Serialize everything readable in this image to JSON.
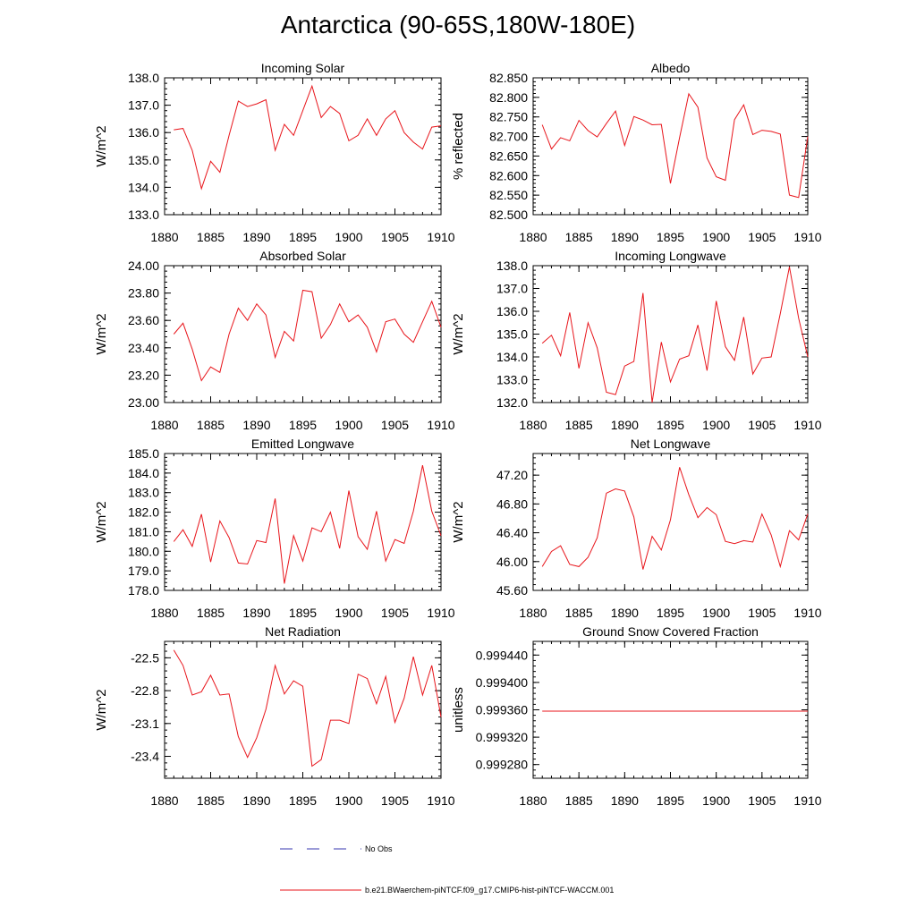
{
  "title": "Antarctica (90-65S,180W-180E)",
  "legend": {
    "obs_label": "No Obs",
    "model_label": "b.e21.BWaerchem-piNTCF.f09_g17.CMIP6-hist-piNTCF-WACCM.001",
    "obs_color": "#3a3ab0",
    "model_color": "#e8151b"
  },
  "chart_data": [
    {
      "type": "line",
      "title": "Incoming Solar",
      "ylabel": "W/m^2",
      "xlim": [
        1880,
        1910
      ],
      "ylim": [
        133.0,
        138.0
      ],
      "xticks": [
        1880,
        1885,
        1890,
        1895,
        1900,
        1905,
        1910
      ],
      "yticks": [
        "133.0",
        "134.0",
        "135.0",
        "136.0",
        "137.0",
        "138.0"
      ],
      "x": [
        1881,
        1882,
        1883,
        1884,
        1885,
        1886,
        1887,
        1888,
        1889,
        1890,
        1891,
        1892,
        1893,
        1894,
        1895,
        1896,
        1897,
        1898,
        1899,
        1900,
        1901,
        1902,
        1903,
        1904,
        1905,
        1906,
        1907,
        1908,
        1909,
        1910
      ],
      "y": [
        136.1,
        136.15,
        135.35,
        133.95,
        134.95,
        134.55,
        135.9,
        137.15,
        136.95,
        137.05,
        137.2,
        135.35,
        136.3,
        135.9,
        136.8,
        137.7,
        136.55,
        136.95,
        136.7,
        135.7,
        135.9,
        136.5,
        135.9,
        136.5,
        136.8,
        136.0,
        135.65,
        135.4,
        136.2,
        136.25
      ]
    },
    {
      "type": "line",
      "title": "Albedo",
      "ylabel": "% reflected",
      "xlim": [
        1880,
        1910
      ],
      "ylim": [
        82.5,
        82.85
      ],
      "xticks": [
        1880,
        1885,
        1890,
        1895,
        1900,
        1905,
        1910
      ],
      "yticks": [
        "82.500",
        "82.550",
        "82.600",
        "82.650",
        "82.700",
        "82.750",
        "82.800",
        "82.850"
      ],
      "x": [
        1881,
        1882,
        1883,
        1884,
        1885,
        1886,
        1887,
        1888,
        1889,
        1890,
        1891,
        1892,
        1893,
        1894,
        1895,
        1896,
        1897,
        1898,
        1899,
        1900,
        1901,
        1902,
        1903,
        1904,
        1905,
        1906,
        1907,
        1908,
        1909,
        1910
      ],
      "y": [
        82.73,
        82.668,
        82.697,
        82.689,
        82.741,
        82.715,
        82.699,
        82.733,
        82.765,
        82.677,
        82.751,
        82.742,
        82.73,
        82.731,
        82.58,
        82.697,
        82.809,
        82.775,
        82.645,
        82.597,
        82.588,
        82.743,
        82.781,
        82.705,
        82.716,
        82.713,
        82.706,
        82.55,
        82.544,
        82.7
      ]
    },
    {
      "type": "line",
      "title": "Absorbed Solar",
      "ylabel": "W/m^2",
      "xlim": [
        1880,
        1910
      ],
      "ylim": [
        23.0,
        24.0
      ],
      "xticks": [
        1880,
        1885,
        1890,
        1895,
        1900,
        1905,
        1910
      ],
      "yticks": [
        "23.00",
        "23.20",
        "23.40",
        "23.60",
        "23.80",
        "24.00"
      ],
      "x": [
        1881,
        1882,
        1883,
        1884,
        1885,
        1886,
        1887,
        1888,
        1889,
        1890,
        1891,
        1892,
        1893,
        1894,
        1895,
        1896,
        1897,
        1898,
        1899,
        1900,
        1901,
        1902,
        1903,
        1904,
        1905,
        1906,
        1907,
        1908,
        1909,
        1910
      ],
      "y": [
        23.5,
        23.58,
        23.39,
        23.16,
        23.26,
        23.22,
        23.5,
        23.69,
        23.6,
        23.72,
        23.64,
        23.33,
        23.52,
        23.45,
        23.82,
        23.81,
        23.47,
        23.57,
        23.72,
        23.59,
        23.64,
        23.55,
        23.37,
        23.59,
        23.61,
        23.5,
        23.44,
        23.59,
        23.74,
        23.55
      ]
    },
    {
      "type": "line",
      "title": "Incoming Longwave",
      "ylabel": "W/m^2",
      "xlim": [
        1880,
        1910
      ],
      "ylim": [
        132.0,
        138.0
      ],
      "xticks": [
        1880,
        1885,
        1890,
        1895,
        1900,
        1905,
        1910
      ],
      "yticks": [
        "132.0",
        "133.0",
        "134.0",
        "135.0",
        "136.0",
        "137.0",
        "138.0"
      ],
      "x": [
        1881,
        1882,
        1883,
        1884,
        1885,
        1886,
        1887,
        1888,
        1889,
        1890,
        1891,
        1892,
        1893,
        1894,
        1895,
        1896,
        1897,
        1898,
        1899,
        1900,
        1901,
        1902,
        1903,
        1904,
        1905,
        1906,
        1907,
        1908,
        1909,
        1910
      ],
      "y": [
        134.6,
        134.95,
        134.05,
        135.95,
        133.5,
        135.5,
        134.4,
        132.45,
        132.35,
        133.6,
        133.8,
        136.8,
        132.0,
        134.65,
        132.9,
        133.9,
        134.05,
        135.4,
        133.4,
        136.45,
        134.45,
        133.85,
        135.75,
        133.25,
        133.95,
        134.0,
        135.9,
        137.95,
        135.7,
        134.0
      ]
    },
    {
      "type": "line",
      "title": "Emitted Longwave",
      "ylabel": "W/m^2",
      "xlim": [
        1880,
        1910
      ],
      "ylim": [
        178.0,
        185.0
      ],
      "xticks": [
        1880,
        1885,
        1890,
        1895,
        1900,
        1905,
        1910
      ],
      "yticks": [
        "178.0",
        "179.0",
        "180.0",
        "181.0",
        "182.0",
        "183.0",
        "184.0",
        "185.0"
      ],
      "x": [
        1881,
        1882,
        1883,
        1884,
        1885,
        1886,
        1887,
        1888,
        1889,
        1890,
        1891,
        1892,
        1893,
        1894,
        1895,
        1896,
        1897,
        1898,
        1899,
        1900,
        1901,
        1902,
        1903,
        1904,
        1905,
        1906,
        1907,
        1908,
        1909,
        1910
      ],
      "y": [
        180.5,
        181.1,
        180.25,
        181.9,
        179.45,
        181.55,
        180.7,
        179.4,
        179.35,
        180.55,
        180.45,
        182.7,
        178.35,
        180.8,
        179.5,
        181.2,
        181.0,
        182.0,
        180.15,
        183.1,
        180.75,
        180.1,
        182.05,
        179.5,
        180.6,
        180.4,
        182.05,
        184.4,
        182.05,
        180.8
      ]
    },
    {
      "type": "line",
      "title": "Net Longwave",
      "ylabel": "W/m^2",
      "xlim": [
        1880,
        1910
      ],
      "ylim": [
        45.6,
        47.5
      ],
      "xticks": [
        1880,
        1885,
        1890,
        1895,
        1900,
        1905,
        1910
      ],
      "yticks": [
        "45.60",
        "46.00",
        "46.40",
        "46.80",
        "47.20"
      ],
      "x": [
        1881,
        1882,
        1883,
        1884,
        1885,
        1886,
        1887,
        1888,
        1889,
        1890,
        1891,
        1892,
        1893,
        1894,
        1895,
        1896,
        1897,
        1898,
        1899,
        1900,
        1901,
        1902,
        1903,
        1904,
        1905,
        1906,
        1907,
        1908,
        1909,
        1910
      ],
      "y": [
        45.93,
        46.14,
        46.22,
        45.96,
        45.93,
        46.06,
        46.33,
        46.95,
        47.01,
        46.98,
        46.62,
        45.89,
        46.35,
        46.16,
        46.58,
        47.31,
        46.93,
        46.61,
        46.75,
        46.65,
        46.28,
        46.25,
        46.29,
        46.27,
        46.66,
        46.37,
        45.93,
        46.43,
        46.3,
        46.66
      ]
    },
    {
      "type": "line",
      "title": "Net Radiation",
      "ylabel": "W/m^2",
      "xlim": [
        1880,
        1910
      ],
      "ylim": [
        -23.6,
        -22.35
      ],
      "xticks": [
        1880,
        1885,
        1890,
        1895,
        1900,
        1905,
        1910
      ],
      "yticks": [
        "-23.4",
        "-23.1",
        "-22.8",
        "-22.5"
      ],
      "x": [
        1881,
        1882,
        1883,
        1884,
        1885,
        1886,
        1887,
        1888,
        1889,
        1890,
        1891,
        1892,
        1893,
        1894,
        1895,
        1896,
        1897,
        1898,
        1899,
        1900,
        1901,
        1902,
        1903,
        1904,
        1905,
        1906,
        1907,
        1908,
        1909,
        1910
      ],
      "y": [
        -22.43,
        -22.57,
        -22.84,
        -22.81,
        -22.66,
        -22.84,
        -22.83,
        -23.22,
        -23.41,
        -23.23,
        -22.97,
        -22.57,
        -22.83,
        -22.71,
        -22.76,
        -23.49,
        -23.43,
        -23.07,
        -23.07,
        -23.1,
        -22.65,
        -22.69,
        -22.92,
        -22.67,
        -23.09,
        -22.87,
        -22.49,
        -22.84,
        -22.57,
        -23.04
      ]
    },
    {
      "type": "line",
      "title": "Ground Snow Covered Fraction",
      "ylabel": "unitless",
      "xlim": [
        1880,
        1910
      ],
      "ylim": [
        0.99926,
        0.99946
      ],
      "xticks": [
        1880,
        1885,
        1890,
        1895,
        1900,
        1905,
        1910
      ],
      "yticks": [
        "0.999280",
        "0.999320",
        "0.999360",
        "0.999400",
        "0.999440"
      ],
      "x": [
        1881,
        1882,
        1883,
        1884,
        1885,
        1886,
        1887,
        1888,
        1889,
        1890,
        1891,
        1892,
        1893,
        1894,
        1895,
        1896,
        1897,
        1898,
        1899,
        1900,
        1901,
        1902,
        1903,
        1904,
        1905,
        1906,
        1907,
        1908,
        1909,
        1910
      ],
      "y": [
        0.999358,
        0.999358,
        0.999358,
        0.999358,
        0.999358,
        0.999358,
        0.999358,
        0.999358,
        0.999358,
        0.999358,
        0.999358,
        0.999358,
        0.999358,
        0.999358,
        0.999358,
        0.999358,
        0.999358,
        0.999358,
        0.999358,
        0.999358,
        0.999358,
        0.999358,
        0.999358,
        0.999358,
        0.999358,
        0.999358,
        0.999358,
        0.999358,
        0.999358,
        0.999358
      ]
    }
  ]
}
